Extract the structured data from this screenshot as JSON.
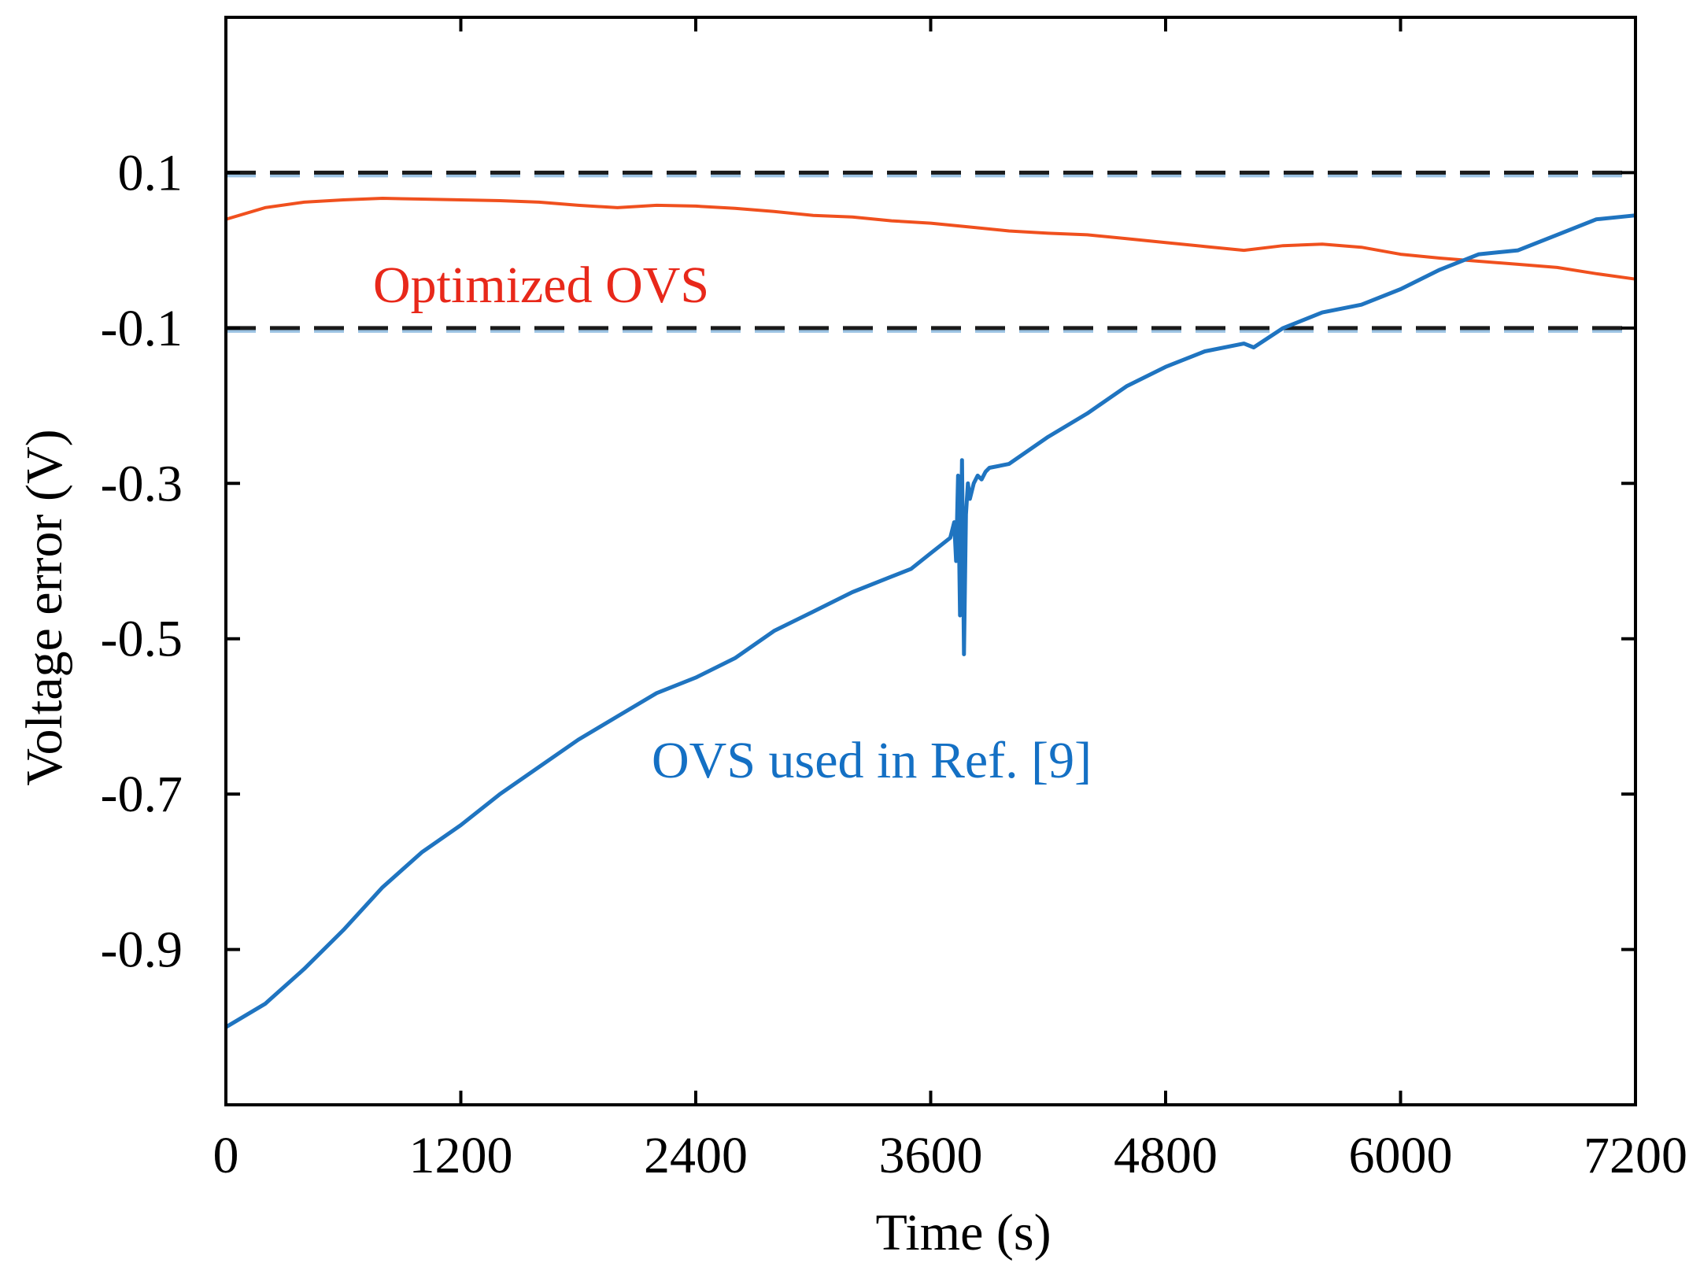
{
  "chart_data": {
    "type": "line",
    "xlabel": "Time (s)",
    "ylabel": "Voltage error (V)",
    "xlim": [
      0,
      7200
    ],
    "ylim": [
      -1.1,
      0.3
    ],
    "x_ticks": [
      0,
      1200,
      2400,
      3600,
      4800,
      6000,
      7200
    ],
    "x_tick_labels": [
      "0",
      "1200",
      "2400",
      "3600",
      "4800",
      "6000",
      "7200"
    ],
    "y_ticks": [
      0.1,
      -0.1,
      -0.3,
      -0.5,
      -0.7,
      -0.9
    ],
    "y_tick_labels": [
      "0.1",
      "-0.1",
      "-0.3",
      "-0.5",
      "-0.7",
      "-0.9"
    ],
    "grid": false,
    "thresholds": [
      {
        "name": "upper-bound",
        "value": 0.1,
        "style": "dashed",
        "color": "#1a1a1a"
      },
      {
        "name": "lower-bound",
        "value": -0.1,
        "style": "dashed",
        "color": "#1a1a1a"
      }
    ],
    "series": [
      {
        "name": "Optimized OVS",
        "color": "#f0501e",
        "label_color": "#e8281a",
        "x": [
          0,
          200,
          400,
          600,
          800,
          1000,
          1200,
          1400,
          1600,
          1800,
          2000,
          2200,
          2400,
          2600,
          2800,
          3000,
          3200,
          3400,
          3600,
          3800,
          4000,
          4200,
          4400,
          4600,
          4800,
          5000,
          5200,
          5400,
          5600,
          5800,
          6000,
          6200,
          6400,
          6600,
          6800,
          7000,
          7200
        ],
        "y": [
          0.04,
          0.055,
          0.062,
          0.065,
          0.067,
          0.066,
          0.065,
          0.064,
          0.062,
          0.058,
          0.055,
          0.058,
          0.057,
          0.054,
          0.05,
          0.045,
          0.043,
          0.038,
          0.035,
          0.03,
          0.025,
          0.022,
          0.02,
          0.015,
          0.01,
          0.005,
          0.0,
          0.006,
          0.008,
          0.004,
          -0.005,
          -0.01,
          -0.014,
          -0.018,
          -0.022,
          -0.03,
          -0.037
        ]
      },
      {
        "name": "OVS used in Ref. [9]",
        "color": "#1f74c0",
        "label_color": "#1470c4",
        "x": [
          0,
          200,
          400,
          600,
          800,
          1000,
          1200,
          1400,
          1600,
          1800,
          2000,
          2200,
          2400,
          2600,
          2800,
          3000,
          3200,
          3400,
          3500,
          3600,
          3650,
          3700,
          3720,
          3730,
          3740,
          3750,
          3760,
          3770,
          3780,
          3790,
          3800,
          3820,
          3840,
          3860,
          3880,
          3900,
          4000,
          4200,
          4400,
          4600,
          4800,
          5000,
          5200,
          5250,
          5400,
          5600,
          5800,
          6000,
          6200,
          6400,
          6600,
          6800,
          7000,
          7200
        ],
        "y": [
          -1.0,
          -0.97,
          -0.925,
          -0.875,
          -0.82,
          -0.775,
          -0.74,
          -0.7,
          -0.665,
          -0.63,
          -0.6,
          -0.57,
          -0.55,
          -0.525,
          -0.49,
          -0.465,
          -0.44,
          -0.42,
          -0.41,
          -0.39,
          -0.38,
          -0.37,
          -0.35,
          -0.4,
          -0.29,
          -0.47,
          -0.27,
          -0.52,
          -0.34,
          -0.3,
          -0.32,
          -0.3,
          -0.29,
          -0.295,
          -0.285,
          -0.28,
          -0.275,
          -0.24,
          -0.21,
          -0.175,
          -0.15,
          -0.13,
          -0.12,
          -0.125,
          -0.1,
          -0.08,
          -0.07,
          -0.05,
          -0.025,
          -0.005,
          -0.0,
          0.02,
          0.04,
          0.045
        ]
      }
    ],
    "annotations": [
      {
        "text": "Optimized OVS",
        "color": "#e8281a"
      },
      {
        "text": "OVS used in Ref. [9]",
        "color": "#1470c4"
      }
    ]
  }
}
